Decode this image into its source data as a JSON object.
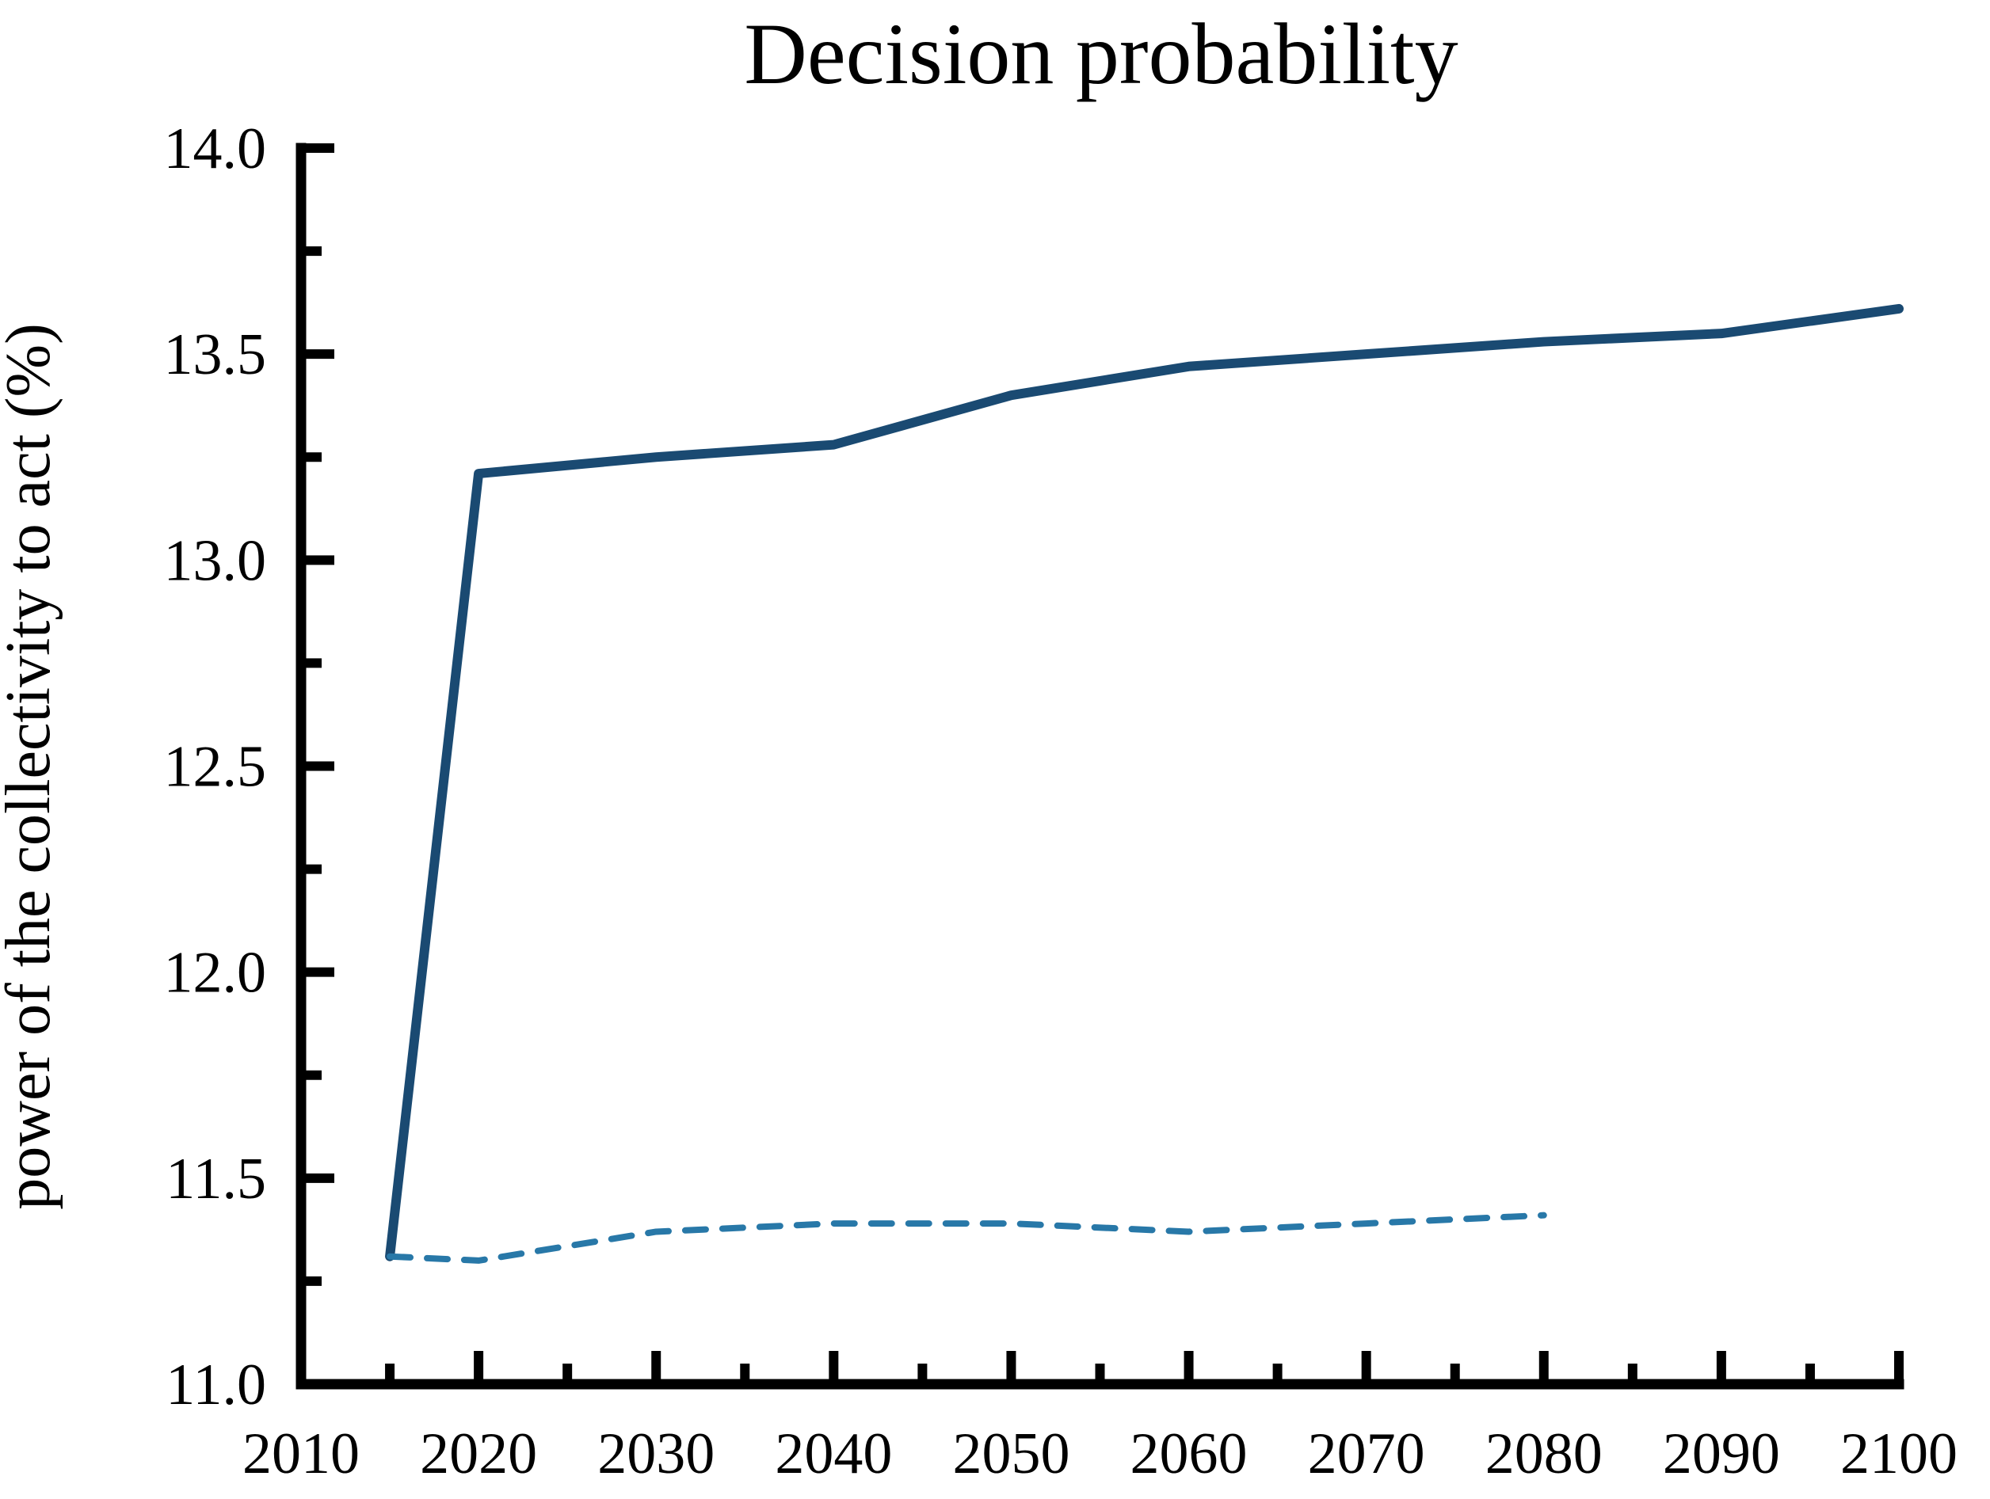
{
  "chart_data": {
    "type": "line",
    "title": "Decision probability",
    "xlabel": "",
    "ylabel": "power of the collectivity to act (%)",
    "xlim": [
      2010,
      2100
    ],
    "ylim": [
      11.0,
      14.0
    ],
    "grid": false,
    "legend": "none",
    "x_major_ticks": [
      2010,
      2020,
      2030,
      2040,
      2050,
      2060,
      2070,
      2080,
      2090,
      2100
    ],
    "x_tick_labels": [
      "2010",
      "2020",
      "2030",
      "2040",
      "2050",
      "2060",
      "2070",
      "2080",
      "2090",
      "2100"
    ],
    "x_minor_step": 5,
    "y_major_ticks": [
      11.0,
      11.5,
      12.0,
      12.5,
      13.0,
      13.5,
      14.0
    ],
    "y_tick_labels": [
      "11.0",
      "11.5",
      "12.0",
      "12.5",
      "13.0",
      "13.5",
      "14.0"
    ],
    "y_minor_step": 0.25,
    "axis_color": "#000000",
    "series": [
      {
        "name": "solid",
        "style": "solid",
        "color": "#1a4a72",
        "line_width": 12,
        "x": [
          2015,
          2020,
          2030,
          2040,
          2050,
          2060,
          2070,
          2080,
          2090,
          2100
        ],
        "y": [
          11.31,
          13.21,
          13.25,
          13.28,
          13.4,
          13.47,
          13.5,
          13.53,
          13.55,
          13.61
        ]
      },
      {
        "name": "dashed",
        "style": "dashed",
        "color": "#2878a8",
        "line_width": 8,
        "x": [
          2015,
          2020,
          2030,
          2040,
          2050,
          2060,
          2070,
          2080
        ],
        "y": [
          11.31,
          11.3,
          11.37,
          11.39,
          11.39,
          11.37,
          11.39,
          11.41
        ]
      }
    ]
  }
}
